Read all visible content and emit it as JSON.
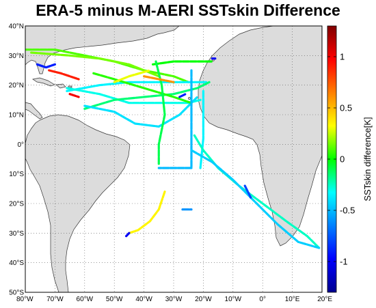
{
  "figure": {
    "title": "ERA-5 minus M-AERI SSTskin Difference"
  },
  "map": {
    "lon_range": [
      -80,
      20
    ],
    "lat_range": [
      -50,
      40
    ],
    "lat_ticks": [
      40,
      30,
      20,
      10,
      0,
      -10,
      -20,
      -30,
      -40,
      -50
    ],
    "lon_ticks": [
      -80,
      -70,
      -60,
      -50,
      -40,
      -30,
      -20,
      -10,
      0,
      10,
      20
    ],
    "lat_tick_labels": [
      "40°N",
      "30°N",
      "20°N",
      "10°N",
      "0°",
      "10°S",
      "20°S",
      "30°S",
      "40°S",
      "50°S"
    ],
    "lon_tick_labels": [
      "80°W",
      "70°W",
      "60°W",
      "50°W",
      "40°W",
      "30°W",
      "20°W",
      "10°W",
      "0°",
      "10°E",
      "20°E"
    ],
    "grid": "dotted",
    "land_color": "#dcdcdc",
    "ocean_color": "#ffffff"
  },
  "colorbar": {
    "label": "SSTskin difference[K]",
    "range": [
      -1.3,
      1.3
    ],
    "ticks": [
      1,
      0.5,
      0,
      -0.5,
      -1
    ],
    "tick_labels": [
      "1",
      "0.5",
      "0",
      "-0.5",
      "-1"
    ],
    "colormap": "jet"
  },
  "chart_data": {
    "type": "scatter",
    "title": "ERA-5 minus M-AERI SSTskin Difference",
    "value_label": "SSTskin difference[K]",
    "note": "ship tracks colored by SSTskin difference",
    "tracks": [
      {
        "lonlat": [
          [
            -80,
            32
          ],
          [
            -70,
            32
          ],
          [
            -60,
            30
          ],
          [
            -50,
            28
          ],
          [
            -40,
            25
          ],
          [
            -30,
            23
          ],
          [
            -25,
            21
          ]
        ],
        "diff": 0.1
      },
      {
        "lonlat": [
          [
            -78,
            31
          ],
          [
            -65,
            30
          ],
          [
            -55,
            29
          ],
          [
            -45,
            27
          ],
          [
            -35,
            23
          ]
        ],
        "diff": 0.15
      },
      {
        "lonlat": [
          [
            -66,
            18
          ],
          [
            -55,
            20
          ],
          [
            -45,
            21
          ],
          [
            -35,
            21
          ],
          [
            -25,
            21
          ],
          [
            -19,
            21
          ]
        ],
        "diff": -0.35
      },
      {
        "lonlat": [
          [
            -66,
            19
          ],
          [
            -55,
            17
          ],
          [
            -45,
            14
          ],
          [
            -35,
            14
          ],
          [
            -25,
            14
          ],
          [
            -21,
            15
          ]
        ],
        "diff": -0.3
      },
      {
        "lonlat": [
          [
            -60,
            12
          ],
          [
            -50,
            15
          ],
          [
            -40,
            16
          ],
          [
            -30,
            17
          ],
          [
            -22,
            19
          ],
          [
            -18,
            21
          ]
        ],
        "diff": -0.15
      },
      {
        "lonlat": [
          [
            -60,
            13
          ],
          [
            -50,
            11
          ],
          [
            -43,
            7
          ],
          [
            -35,
            6
          ],
          [
            -28,
            10
          ],
          [
            -22,
            16
          ]
        ],
        "diff": -0.4
      },
      {
        "lonlat": [
          [
            -57,
            24
          ],
          [
            -50,
            22
          ],
          [
            -40,
            19
          ],
          [
            -30,
            16
          ],
          [
            -24,
            14
          ]
        ],
        "diff": 0.05
      },
      {
        "lonlat": [
          [
            -50,
            21
          ],
          [
            -45,
            23
          ],
          [
            -38,
            25
          ]
        ],
        "diff": 0.3
      },
      {
        "lonlat": [
          [
            -37,
            27
          ],
          [
            -30,
            28
          ],
          [
            -24,
            28
          ],
          [
            -17,
            28
          ]
        ],
        "diff": 0.0
      },
      {
        "lonlat": [
          [
            -20,
            18
          ],
          [
            -20,
            10
          ],
          [
            -20,
            2
          ],
          [
            -21,
            -8
          ]
        ],
        "diff": -0.35
      },
      {
        "lonlat": [
          [
            -36,
            28
          ],
          [
            -34,
            20
          ],
          [
            -33,
            10
          ],
          [
            -35,
            0
          ],
          [
            -35,
            -7
          ]
        ],
        "diff": -0.1
      },
      {
        "lonlat": [
          [
            -24,
            25
          ],
          [
            -24,
            15
          ],
          [
            -24,
            5
          ],
          [
            -24,
            -8
          ],
          [
            -31,
            -8
          ],
          [
            -35,
            -8
          ]
        ],
        "diff": -0.5
      },
      {
        "lonlat": [
          [
            -23,
            3
          ],
          [
            -20,
            -2
          ],
          [
            -15,
            -8
          ],
          [
            -8,
            -14
          ],
          [
            0,
            -20
          ],
          [
            8,
            -26
          ],
          [
            15,
            -31
          ],
          [
            19,
            -35
          ]
        ],
        "diff": -0.25
      },
      {
        "lonlat": [
          [
            -24,
            -2
          ],
          [
            -17,
            -6
          ],
          [
            -10,
            -12
          ],
          [
            -3,
            -19
          ],
          [
            5,
            -27
          ],
          [
            12,
            -33
          ],
          [
            19,
            -35
          ]
        ],
        "diff": -0.45
      },
      {
        "lonlat": [
          [
            -33,
            -16
          ],
          [
            -35,
            -22
          ],
          [
            -38,
            -26
          ],
          [
            -42,
            -29
          ],
          [
            -45,
            -30
          ]
        ],
        "diff": 0.35
      },
      {
        "lonlat": [
          [
            -45,
            -30
          ],
          [
            -46,
            -31
          ]
        ],
        "diff": -1.0
      },
      {
        "lonlat": [
          [
            -27,
            -22
          ],
          [
            -24,
            -22
          ]
        ],
        "diff": -0.6
      },
      {
        "lonlat": [
          [
            -6,
            -14
          ],
          [
            -4,
            -18
          ]
        ],
        "diff": -0.8
      },
      {
        "lonlat": [
          [
            -17,
            29
          ],
          [
            -16,
            29
          ]
        ],
        "diff": -1.0
      },
      {
        "lonlat": [
          [
            -72,
            25
          ],
          [
            -68,
            24
          ],
          [
            -62,
            22
          ]
        ],
        "diff": 0.9
      },
      {
        "lonlat": [
          [
            -76,
            27
          ],
          [
            -73,
            26
          ],
          [
            -70,
            27
          ]
        ],
        "diff": -0.9
      },
      {
        "lonlat": [
          [
            -40,
            23
          ],
          [
            -35,
            22
          ],
          [
            -30,
            21
          ]
        ],
        "diff": 0.6
      },
      {
        "lonlat": [
          [
            -65,
            17
          ],
          [
            -62,
            16
          ]
        ],
        "diff": 1.0
      },
      {
        "lonlat": [
          [
            -28,
            16
          ],
          [
            -26,
            17
          ]
        ],
        "diff": -0.9
      }
    ]
  }
}
